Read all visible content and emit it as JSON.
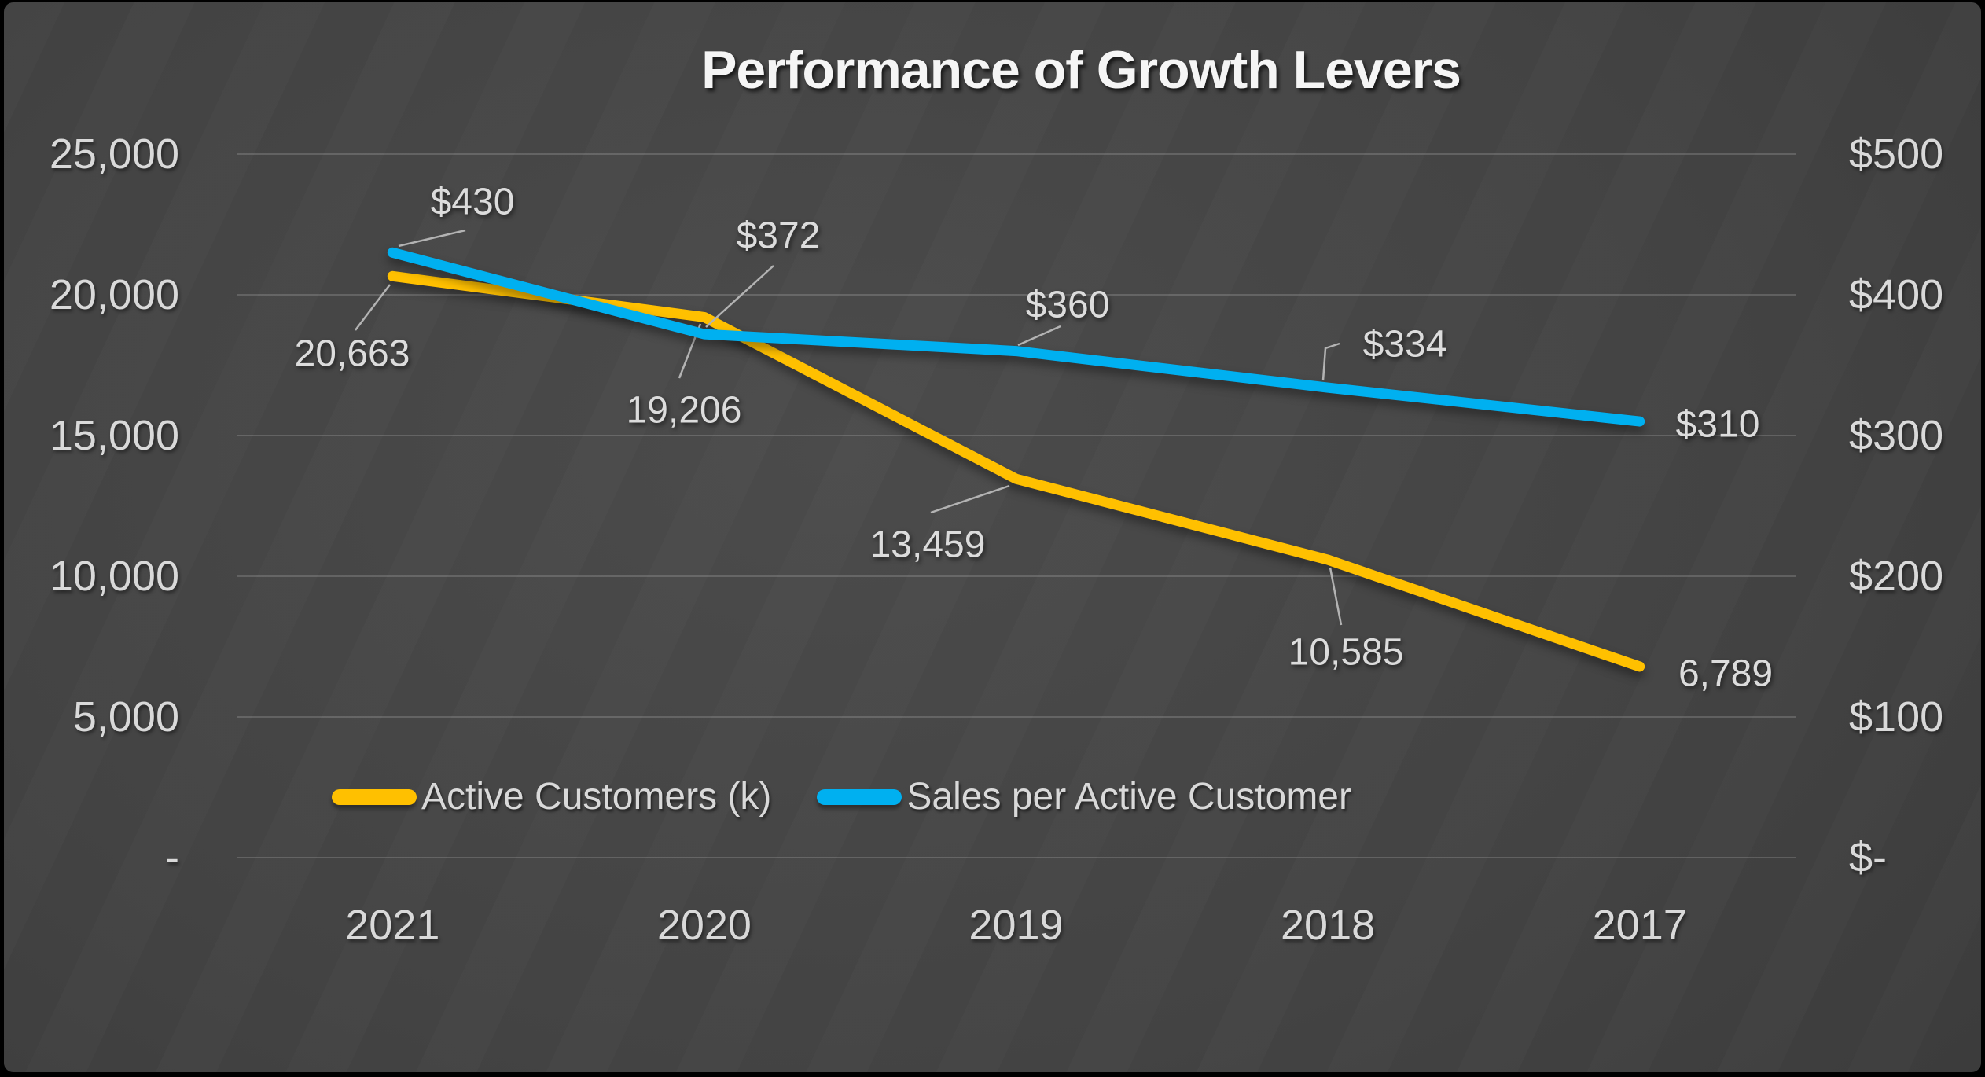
{
  "title": "Performance of Growth Levers",
  "chart_data": {
    "type": "line",
    "title": "Performance of Growth Levers",
    "categories": [
      "2021",
      "2020",
      "2019",
      "2018",
      "2017"
    ],
    "series": [
      {
        "name": "Active Customers (k)",
        "color": "#FFC000",
        "axis": "left",
        "values": [
          20663,
          19206,
          13459,
          10585,
          6789
        ],
        "point_labels": [
          "20,663",
          "19,206",
          "13,459",
          "10,585",
          "6,789"
        ]
      },
      {
        "name": "Sales per Active Customer",
        "color": "#00B0F0",
        "axis": "right",
        "values": [
          430,
          372,
          360,
          334,
          310
        ],
        "point_labels": [
          "$430",
          "$372",
          "$360",
          "$334",
          "$310"
        ]
      }
    ],
    "left_axis": {
      "min": 0,
      "max": 25000,
      "ticks": [
        "25,000",
        "20,000",
        "15,000",
        "10,000",
        "5,000",
        "-"
      ]
    },
    "right_axis": {
      "min": 0,
      "max": 500,
      "ticks": [
        "$500",
        "$400",
        "$300",
        "$200",
        "$100",
        "$-"
      ]
    },
    "grid": "horizontal",
    "legend_position": "bottom"
  },
  "colors": {
    "background": "#3E3E3E",
    "gridline": "#6B6B6B",
    "axis_text": "#D9D9D9",
    "title_text": "#F5F5F5",
    "leader_line": "#B3B3B3",
    "series_gold": "#FFC000",
    "series_blue": "#00B0F0"
  }
}
